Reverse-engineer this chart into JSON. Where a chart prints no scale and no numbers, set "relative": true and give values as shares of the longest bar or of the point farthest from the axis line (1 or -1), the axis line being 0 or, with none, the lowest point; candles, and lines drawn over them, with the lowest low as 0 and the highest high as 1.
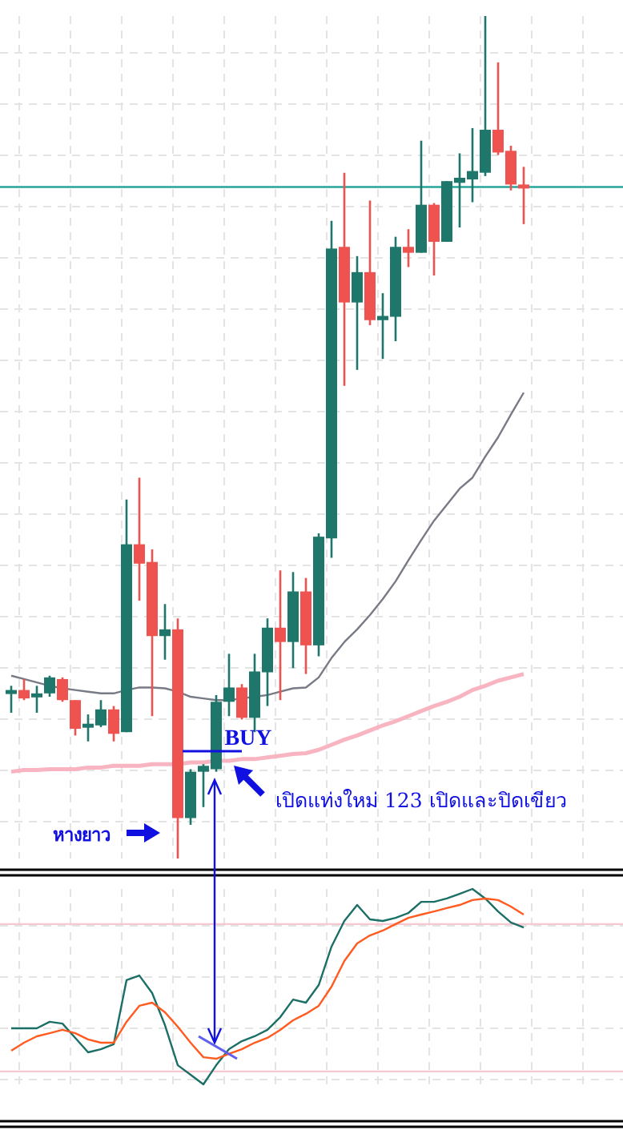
{
  "chart_data": [
    {
      "type": "candlestick",
      "relative": true,
      "grid": true,
      "categories": [
        null,
        null,
        null,
        null,
        null,
        null,
        null,
        null,
        null,
        null,
        null,
        null,
        null,
        null,
        null,
        null,
        null,
        null,
        null,
        null,
        null,
        null,
        null,
        null,
        null,
        null,
        null,
        null,
        null,
        null,
        null,
        null,
        null,
        null,
        null,
        null,
        null,
        null,
        null,
        null,
        null
      ],
      "ohlc": [
        [
          0.196,
          0.205,
          0.173,
          0.2
        ],
        [
          0.2,
          0.213,
          0.188,
          0.19
        ],
        [
          0.192,
          0.205,
          0.173,
          0.196
        ],
        [
          0.196,
          0.217,
          0.192,
          0.215
        ],
        [
          0.213,
          0.215,
          0.186,
          0.188
        ],
        [
          0.188,
          0.188,
          0.146,
          0.154
        ],
        [
          0.156,
          0.171,
          0.139,
          0.16
        ],
        [
          0.158,
          0.188,
          0.156,
          0.177
        ],
        [
          0.177,
          0.181,
          0.139,
          0.148
        ],
        [
          0.15,
          0.426,
          0.15,
          0.373
        ],
        [
          0.373,
          0.452,
          0.306,
          0.35
        ],
        [
          0.352,
          0.367,
          0.169,
          0.264
        ],
        [
          0.264,
          0.302,
          0.236,
          0.272
        ],
        [
          0.272,
          0.285,
          0,
          0.048
        ],
        [
          0.048,
          0.106,
          0.04,
          0.103
        ],
        [
          0.103,
          0.112,
          0.061,
          0.11
        ],
        [
          0.106,
          0.194,
          0.103,
          0.186
        ],
        [
          0.186,
          0.243,
          0.169,
          0.203
        ],
        [
          0.203,
          0.207,
          0.165,
          0.167
        ],
        [
          0.167,
          0.243,
          0.15,
          0.222
        ],
        [
          0.221,
          0.285,
          0.181,
          0.274
        ],
        [
          0.274,
          0.342,
          0.188,
          0.257
        ],
        [
          0.257,
          0.34,
          0.226,
          0.317
        ],
        [
          0.317,
          0.333,
          0.219,
          0.253
        ],
        [
          0.253,
          0.386,
          0.24,
          0.382
        ],
        [
          0.38,
          0.757,
          0.357,
          0.724
        ],
        [
          0.726,
          0.814,
          0.561,
          0.66
        ],
        [
          0.66,
          0.715,
          0.58,
          0.696
        ],
        [
          0.696,
          0.781,
          0.633,
          0.639
        ],
        [
          0.639,
          0.671,
          0.593,
          0.644
        ],
        [
          0.643,
          0.738,
          0.614,
          0.726
        ],
        [
          0.726,
          0.747,
          0.702,
          0.719
        ],
        [
          0.719,
          0.852,
          0.719,
          0.776
        ],
        [
          0.776,
          0.778,
          0.692,
          0.732
        ],
        [
          0.732,
          0.804,
          0.732,
          0.804
        ],
        [
          0.802,
          0.837,
          0.749,
          0.808
        ],
        [
          0.806,
          0.867,
          0.779,
          0.816
        ],
        [
          0.814,
          1.0,
          0.81,
          0.865
        ],
        [
          0.865,
          0.945,
          0.835,
          0.838
        ],
        [
          0.84,
          0.846,
          0.793,
          0.8
        ],
        [
          0.8,
          0.821,
          0.753,
          0.797
        ]
      ],
      "series": [
        {
          "type": "line",
          "color": "#787b86",
          "values": [
            0.217,
            0.213,
            0.209,
            0.205,
            0.202,
            0.2,
            0.198,
            0.196,
            0.196,
            0.2,
            0.203,
            0.203,
            0.202,
            0.198,
            0.192,
            0.19,
            0.188,
            0.188,
            0.19,
            0.192,
            0.194,
            0.198,
            0.202,
            0.203,
            0.215,
            0.238,
            0.257,
            0.272,
            0.289,
            0.308,
            0.329,
            0.354,
            0.378,
            0.401,
            0.42,
            0.439,
            0.452,
            0.477,
            0.5,
            0.527,
            0.553
          ]
        },
        {
          "type": "line",
          "color": "#f8b4c0",
          "values": [
            0.103,
            0.105,
            0.105,
            0.106,
            0.106,
            0.106,
            0.108,
            0.108,
            0.11,
            0.11,
            0.11,
            0.112,
            0.112,
            0.112,
            0.114,
            0.114,
            0.116,
            0.116,
            0.118,
            0.118,
            0.12,
            0.122,
            0.124,
            0.125,
            0.129,
            0.135,
            0.141,
            0.146,
            0.152,
            0.158,
            0.163,
            0.169,
            0.175,
            0.181,
            0.186,
            0.192,
            0.2,
            0.205,
            0.211,
            0.215,
            0.219
          ]
        }
      ],
      "ref_lines": [
        {
          "axis": "y",
          "value": 0.797,
          "color": "#26a69a"
        }
      ],
      "annotations": [
        "BUY",
        "เปิดแท่งใหม่ 123 เปิดและปิดเขียว",
        "หางยาว"
      ]
    },
    {
      "type": "line",
      "relative": true,
      "grid": true,
      "categories": [
        null,
        null,
        null,
        null,
        null,
        null,
        null,
        null,
        null,
        null,
        null,
        null,
        null,
        null,
        null,
        null,
        null,
        null,
        null,
        null,
        null,
        null,
        null,
        null,
        null,
        null,
        null,
        null,
        null,
        null,
        null,
        null,
        null,
        null,
        null,
        null,
        null,
        null,
        null,
        null,
        null
      ],
      "series": [
        {
          "color": "#1b6f66",
          "values": [
            0.287,
            0.287,
            0.287,
            0.32,
            0.311,
            0.238,
            0.164,
            0.18,
            0.205,
            0.533,
            0.557,
            0.467,
            0.303,
            0.098,
            0.049,
            0,
            0.098,
            0.18,
            0.221,
            0.246,
            0.279,
            0.344,
            0.434,
            0.418,
            0.508,
            0.705,
            0.836,
            0.918,
            0.844,
            0.836,
            0.852,
            0.877,
            0.934,
            0.934,
            0.951,
            0.975,
            1.0,
            0.951,
            0.885,
            0.828,
            0.803
          ]
        },
        {
          "color": "#ff5a1f",
          "values": [
            0.172,
            0.213,
            0.246,
            0.262,
            0.279,
            0.262,
            0.23,
            0.213,
            0.213,
            0.32,
            0.402,
            0.418,
            0.369,
            0.295,
            0.213,
            0.139,
            0.131,
            0.156,
            0.18,
            0.213,
            0.238,
            0.279,
            0.328,
            0.361,
            0.402,
            0.5,
            0.631,
            0.721,
            0.762,
            0.787,
            0.82,
            0.852,
            0.869,
            0.885,
            0.902,
            0.918,
            0.943,
            0.951,
            0.943,
            0.91,
            0.869
          ]
        }
      ],
      "ref_lines": [
        {
          "axis": "y",
          "value": 0.82,
          "color": "#f8c8d0"
        },
        {
          "axis": "y",
          "value": 0.066,
          "color": "#f8c8d0"
        }
      ]
    }
  ]
}
